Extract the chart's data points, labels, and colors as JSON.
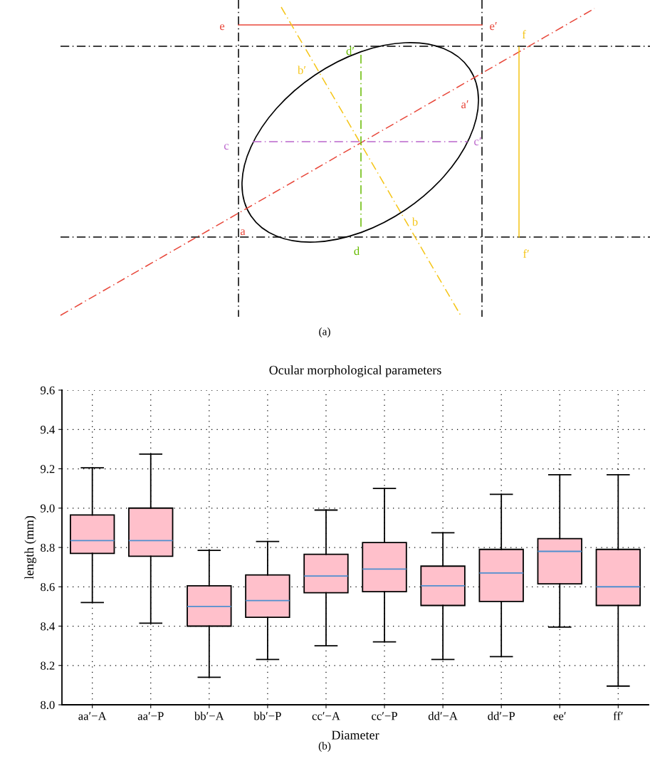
{
  "chart_data": [
    {
      "type": "other",
      "annotations": [
        "e",
        "e′",
        "f",
        "d′",
        "b′",
        "a′",
        "c",
        "c′",
        "a",
        "b",
        "d",
        "f′",
        "(a)"
      ]
    },
    {
      "type": "box",
      "title": "Ocular morphological parameters",
      "xlabel": "Diameter",
      "ylabel": "length (mm)",
      "categories": [
        "aa′−A",
        "aa′−P",
        "bb′−A",
        "bb′−P",
        "cc′−A",
        "cc′−P",
        "dd′−A",
        "dd′−P",
        "ee′",
        "ff′"
      ],
      "boxes": [
        {
          "low": 8.52,
          "q1": 8.77,
          "median": 8.835,
          "q3": 8.965,
          "high": 9.205
        },
        {
          "low": 8.415,
          "q1": 8.755,
          "median": 8.835,
          "q3": 9.0,
          "high": 9.275
        },
        {
          "low": 8.14,
          "q1": 8.4,
          "median": 8.5,
          "q3": 8.605,
          "high": 8.785
        },
        {
          "low": 8.23,
          "q1": 8.445,
          "median": 8.53,
          "q3": 8.66,
          "high": 8.83
        },
        {
          "low": 8.3,
          "q1": 8.57,
          "median": 8.655,
          "q3": 8.765,
          "high": 8.99
        },
        {
          "low": 8.32,
          "q1": 8.575,
          "median": 8.69,
          "q3": 8.825,
          "high": 9.1
        },
        {
          "low": 8.23,
          "q1": 8.505,
          "median": 8.605,
          "q3": 8.705,
          "high": 8.875
        },
        {
          "low": 8.245,
          "q1": 8.525,
          "median": 8.67,
          "q3": 8.79,
          "high": 9.07
        },
        {
          "low": 8.395,
          "q1": 8.615,
          "median": 8.78,
          "q3": 8.845,
          "high": 9.17
        },
        {
          "low": 8.095,
          "q1": 8.505,
          "median": 8.6,
          "q3": 8.79,
          "high": 9.17
        }
      ],
      "color": "#ffc0cb",
      "ylim": [
        8.0,
        9.6
      ],
      "yticks": [
        {
          "value": 8,
          "label": "8.0"
        },
        8.2,
        8.4,
        8.6,
        8.8,
        {
          "value": 9,
          "label": "9.0"
        },
        9.2,
        9.4,
        9.6
      ],
      "grid": true,
      "line_style": "dotted",
      "annotations": [
        "(b)"
      ]
    }
  ]
}
